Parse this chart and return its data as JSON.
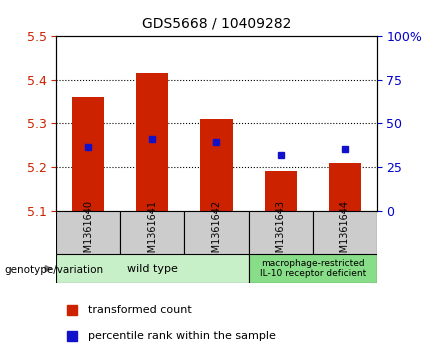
{
  "title": "GDS5668 / 10409282",
  "samples": [
    "GSM1361640",
    "GSM1361641",
    "GSM1361642",
    "GSM1361643",
    "GSM1361644"
  ],
  "bar_bottom": 5.1,
  "bar_tops": [
    5.36,
    5.415,
    5.31,
    5.19,
    5.21
  ],
  "percentile_values": [
    5.245,
    5.265,
    5.257,
    5.228,
    5.242
  ],
  "ylim": [
    5.1,
    5.5
  ],
  "yticks_left": [
    5.1,
    5.2,
    5.3,
    5.4,
    5.5
  ],
  "yticks_right": [
    0,
    25,
    50,
    75,
    100
  ],
  "bar_color": "#cc2200",
  "percentile_color": "#1111cc",
  "label_bg": "#cccccc",
  "group1_label": "wild type",
  "group1_samples": [
    0,
    1,
    2
  ],
  "group2_label": "macrophage-restricted\nIL-10 receptor deficient",
  "group2_samples": [
    3,
    4
  ],
  "group1_bg": "#c8f0c8",
  "group2_bg": "#88dd88",
  "xlabel_color": "#cc2200",
  "ylabel_right_color": "#0000cc",
  "bar_width": 0.5,
  "legend_tc": "transformed count",
  "legend_pr": "percentile rank within the sample"
}
